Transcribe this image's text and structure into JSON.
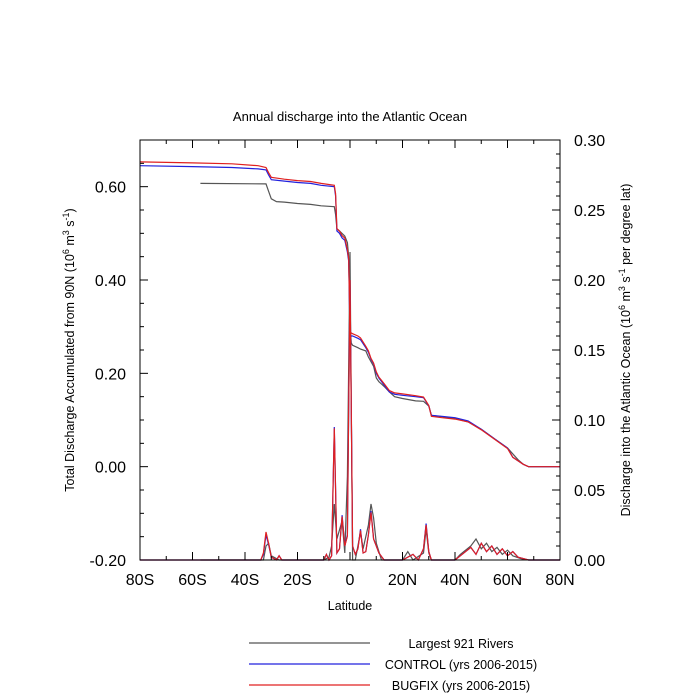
{
  "chart_data": {
    "type": "line",
    "title": "Annual discharge into the Atlantic Ocean",
    "xlabel": "Latitude",
    "ylabel_left": {
      "text": "Total Discharge Accumulated from 90N (10",
      "sup1": "6",
      "mid": " m",
      "sup2": "3",
      "mid2": " s",
      "sup3": "-1",
      "end": ")"
    },
    "ylabel_right": {
      "text": "Discharge into the Atlantic Ocean (10",
      "sup1": "6",
      "mid": " m",
      "sup2": "3",
      "mid2": " s",
      "sup3": "-1",
      "end": " per degree lat)"
    },
    "x_ticks": [
      {
        "value": -80,
        "label": "80S"
      },
      {
        "value": -60,
        "label": "60S"
      },
      {
        "value": -40,
        "label": "40S"
      },
      {
        "value": -20,
        "label": "20S"
      },
      {
        "value": 0,
        "label": "0"
      },
      {
        "value": 20,
        "label": "20N"
      },
      {
        "value": 40,
        "label": "40N"
      },
      {
        "value": 60,
        "label": "60N"
      },
      {
        "value": 80,
        "label": "80N"
      }
    ],
    "y_left_ticks": [
      {
        "value": -0.2,
        "label": "-0.20"
      },
      {
        "value": 0.0,
        "label": "0.00"
      },
      {
        "value": 0.2,
        "label": "0.20"
      },
      {
        "value": 0.4,
        "label": "0.40"
      },
      {
        "value": 0.6,
        "label": "0.60"
      }
    ],
    "y_right_ticks": [
      {
        "value": 0.0,
        "label": "0.00"
      },
      {
        "value": 0.05,
        "label": "0.05"
      },
      {
        "value": 0.1,
        "label": "0.10"
      },
      {
        "value": 0.15,
        "label": "0.15"
      },
      {
        "value": 0.2,
        "label": "0.20"
      },
      {
        "value": 0.25,
        "label": "0.25"
      },
      {
        "value": 0.3,
        "label": "0.30"
      }
    ],
    "xlim": [
      -80,
      80
    ],
    "ylim_left": [
      -0.2,
      0.7
    ],
    "ylim_right": [
      0.0,
      0.3
    ],
    "legend_position": "bottom",
    "series": [
      {
        "name": "Largest 921 Rivers",
        "color": "#555555",
        "accumulated": [
          [
            -57,
            0.607
          ],
          [
            -32,
            0.606
          ],
          [
            -31,
            0.59
          ],
          [
            -30,
            0.574
          ],
          [
            -28,
            0.568
          ],
          [
            -25,
            0.567
          ],
          [
            -20,
            0.564
          ],
          [
            -15,
            0.562
          ],
          [
            -11,
            0.559
          ],
          [
            -6,
            0.557
          ],
          [
            -5.5,
            0.54
          ],
          [
            -5,
            0.51
          ],
          [
            -4,
            0.505
          ],
          [
            -2,
            0.494
          ],
          [
            -1,
            0.48
          ],
          [
            -0.5,
            0.45
          ],
          [
            0,
            0.3
          ],
          [
            0.5,
            0.265
          ],
          [
            1,
            0.26
          ],
          [
            3,
            0.255
          ],
          [
            4,
            0.252
          ],
          [
            6,
            0.248
          ],
          [
            7,
            0.235
          ],
          [
            9,
            0.215
          ],
          [
            10,
            0.19
          ],
          [
            11,
            0.182
          ],
          [
            13,
            0.172
          ],
          [
            15,
            0.16
          ],
          [
            17,
            0.15
          ],
          [
            20,
            0.146
          ],
          [
            25,
            0.141
          ],
          [
            28,
            0.14
          ],
          [
            30,
            0.13
          ],
          [
            31,
            0.11
          ],
          [
            35,
            0.107
          ],
          [
            40,
            0.103
          ],
          [
            45,
            0.096
          ],
          [
            50,
            0.08
          ],
          [
            55,
            0.06
          ],
          [
            60,
            0.04
          ],
          [
            64,
            0.015
          ],
          [
            66,
            0.005
          ],
          [
            68,
            0.0
          ],
          [
            80,
            0.0
          ]
        ],
        "per_degree": [
          [
            -57,
            0.0
          ],
          [
            -33,
            0.0
          ],
          [
            -32,
            0.01
          ],
          [
            -31,
            0.012
          ],
          [
            -30,
            0.003
          ],
          [
            -27,
            0.0
          ],
          [
            -10,
            0.0
          ],
          [
            -8,
            0.002
          ],
          [
            -7,
            0.01
          ],
          [
            -6,
            0.04
          ],
          [
            -5,
            0.015
          ],
          [
            -3,
            0.028
          ],
          [
            -2,
            0.005
          ],
          [
            -1,
            0.06
          ],
          [
            0,
            0.22
          ],
          [
            1,
            0.0
          ],
          [
            2,
            0.0
          ],
          [
            4,
            0.02
          ],
          [
            5,
            0.008
          ],
          [
            7,
            0.025
          ],
          [
            8,
            0.04
          ],
          [
            9,
            0.03
          ],
          [
            10,
            0.012
          ],
          [
            12,
            0.0
          ],
          [
            20,
            0.0
          ],
          [
            22,
            0.006
          ],
          [
            24,
            0.0
          ],
          [
            28,
            0.005
          ],
          [
            29,
            0.022
          ],
          [
            30,
            0.005
          ],
          [
            31,
            0.0
          ],
          [
            40,
            0.0
          ],
          [
            42,
            0.004
          ],
          [
            46,
            0.01
          ],
          [
            48,
            0.015
          ],
          [
            50,
            0.008
          ],
          [
            52,
            0.012
          ],
          [
            54,
            0.006
          ],
          [
            56,
            0.009
          ],
          [
            58,
            0.004
          ],
          [
            60,
            0.007
          ],
          [
            62,
            0.003
          ],
          [
            65,
            0.001
          ],
          [
            68,
            0.0
          ],
          [
            80,
            0.0
          ]
        ]
      },
      {
        "name": "CONTROL (yrs 2006-2015)",
        "color": "#2222dd",
        "accumulated": [
          [
            -80,
            0.645
          ],
          [
            -60,
            0.643
          ],
          [
            -45,
            0.641
          ],
          [
            -35,
            0.638
          ],
          [
            -32,
            0.636
          ],
          [
            -31,
            0.625
          ],
          [
            -30,
            0.615
          ],
          [
            -25,
            0.612
          ],
          [
            -20,
            0.609
          ],
          [
            -15,
            0.607
          ],
          [
            -11,
            0.603
          ],
          [
            -6,
            0.6
          ],
          [
            -5.5,
            0.58
          ],
          [
            -5,
            0.505
          ],
          [
            -4,
            0.5
          ],
          [
            -3,
            0.49
          ],
          [
            -2,
            0.485
          ],
          [
            -1,
            0.46
          ],
          [
            -0.5,
            0.44
          ],
          [
            0,
            0.28
          ],
          [
            1,
            0.28
          ],
          [
            3,
            0.275
          ],
          [
            4,
            0.272
          ],
          [
            6,
            0.255
          ],
          [
            7,
            0.245
          ],
          [
            8,
            0.23
          ],
          [
            9,
            0.22
          ],
          [
            10,
            0.2
          ],
          [
            11,
            0.19
          ],
          [
            13,
            0.175
          ],
          [
            15,
            0.16
          ],
          [
            17,
            0.155
          ],
          [
            20,
            0.153
          ],
          [
            25,
            0.15
          ],
          [
            28,
            0.148
          ],
          [
            30,
            0.13
          ],
          [
            31,
            0.11
          ],
          [
            35,
            0.108
          ],
          [
            40,
            0.105
          ],
          [
            45,
            0.098
          ],
          [
            50,
            0.08
          ],
          [
            55,
            0.06
          ],
          [
            60,
            0.04
          ],
          [
            62,
            0.02
          ],
          [
            66,
            0.005
          ],
          [
            68,
            0.0
          ],
          [
            80,
            0.0
          ]
        ],
        "per_degree": [
          [
            -80,
            0.0
          ],
          [
            -34,
            0.0
          ],
          [
            -33,
            0.004
          ],
          [
            -32,
            0.018
          ],
          [
            -31,
            0.011
          ],
          [
            -30,
            0.002
          ],
          [
            -28,
            0.0
          ],
          [
            -27,
            0.003
          ],
          [
            -26,
            0.0
          ],
          [
            -10,
            0.0
          ],
          [
            -9,
            0.004
          ],
          [
            -8,
            0.0
          ],
          [
            -7,
            0.003
          ],
          [
            -6,
            0.095
          ],
          [
            -5,
            0.005
          ],
          [
            -4,
            0.008
          ],
          [
            -3,
            0.032
          ],
          [
            -2,
            0.01
          ],
          [
            -1,
            0.018
          ],
          [
            0,
            0.2
          ],
          [
            1,
            0.01
          ],
          [
            2,
            0.004
          ],
          [
            3,
            0.008
          ],
          [
            4,
            0.022
          ],
          [
            5,
            0.005
          ],
          [
            6,
            0.006
          ],
          [
            7,
            0.018
          ],
          [
            8,
            0.035
          ],
          [
            9,
            0.015
          ],
          [
            10,
            0.01
          ],
          [
            11,
            0.005
          ],
          [
            13,
            0.0
          ],
          [
            20,
            0.0
          ],
          [
            24,
            0.004
          ],
          [
            26,
            0.0
          ],
          [
            28,
            0.008
          ],
          [
            29,
            0.026
          ],
          [
            30,
            0.006
          ],
          [
            31,
            0.0
          ],
          [
            40,
            0.0
          ],
          [
            42,
            0.003
          ],
          [
            46,
            0.009
          ],
          [
            48,
            0.004
          ],
          [
            50,
            0.012
          ],
          [
            52,
            0.006
          ],
          [
            54,
            0.01
          ],
          [
            56,
            0.004
          ],
          [
            58,
            0.008
          ],
          [
            60,
            0.003
          ],
          [
            62,
            0.006
          ],
          [
            64,
            0.002
          ],
          [
            66,
            0.001
          ],
          [
            68,
            0.0
          ],
          [
            80,
            0.0
          ]
        ]
      },
      {
        "name": "BUGFIX (yrs 2006-2015)",
        "color": "#e02020",
        "accumulated": [
          [
            -80,
            0.653
          ],
          [
            -60,
            0.651
          ],
          [
            -45,
            0.649
          ],
          [
            -35,
            0.645
          ],
          [
            -32,
            0.641
          ],
          [
            -31,
            0.63
          ],
          [
            -30,
            0.62
          ],
          [
            -25,
            0.616
          ],
          [
            -20,
            0.613
          ],
          [
            -15,
            0.611
          ],
          [
            -11,
            0.607
          ],
          [
            -6,
            0.603
          ],
          [
            -5.5,
            0.585
          ],
          [
            -5,
            0.51
          ],
          [
            -4,
            0.505
          ],
          [
            -3,
            0.495
          ],
          [
            -2,
            0.49
          ],
          [
            -1,
            0.465
          ],
          [
            -0.5,
            0.445
          ],
          [
            0,
            0.288
          ],
          [
            1,
            0.285
          ],
          [
            3,
            0.28
          ],
          [
            4,
            0.276
          ],
          [
            6,
            0.258
          ],
          [
            7,
            0.248
          ],
          [
            8,
            0.232
          ],
          [
            9,
            0.222
          ],
          [
            10,
            0.203
          ],
          [
            11,
            0.192
          ],
          [
            13,
            0.178
          ],
          [
            15,
            0.163
          ],
          [
            17,
            0.158
          ],
          [
            20,
            0.156
          ],
          [
            25,
            0.152
          ],
          [
            28,
            0.149
          ],
          [
            30,
            0.131
          ],
          [
            31,
            0.108
          ],
          [
            35,
            0.105
          ],
          [
            40,
            0.102
          ],
          [
            45,
            0.096
          ],
          [
            50,
            0.079
          ],
          [
            55,
            0.059
          ],
          [
            60,
            0.039
          ],
          [
            62,
            0.02
          ],
          [
            66,
            0.005
          ],
          [
            68,
            0.0
          ],
          [
            80,
            0.0
          ]
        ],
        "per_degree": [
          [
            -80,
            0.0
          ],
          [
            -34,
            0.0
          ],
          [
            -33,
            0.005
          ],
          [
            -32,
            0.02
          ],
          [
            -31,
            0.012
          ],
          [
            -30,
            0.002
          ],
          [
            -28,
            0.0
          ],
          [
            -27,
            0.003
          ],
          [
            -26,
            0.0
          ],
          [
            -10,
            0.0
          ],
          [
            -9,
            0.004
          ],
          [
            -8,
            0.0
          ],
          [
            -7,
            0.003
          ],
          [
            -6,
            0.094
          ],
          [
            -5,
            0.005
          ],
          [
            -4,
            0.008
          ],
          [
            -3,
            0.031
          ],
          [
            -2,
            0.01
          ],
          [
            -1,
            0.017
          ],
          [
            0,
            0.2
          ],
          [
            1,
            0.01
          ],
          [
            2,
            0.004
          ],
          [
            3,
            0.008
          ],
          [
            4,
            0.021
          ],
          [
            5,
            0.005
          ],
          [
            6,
            0.006
          ],
          [
            7,
            0.018
          ],
          [
            8,
            0.034
          ],
          [
            9,
            0.015
          ],
          [
            10,
            0.01
          ],
          [
            11,
            0.005
          ],
          [
            13,
            0.0
          ],
          [
            20,
            0.0
          ],
          [
            24,
            0.004
          ],
          [
            26,
            0.0
          ],
          [
            28,
            0.008
          ],
          [
            29,
            0.025
          ],
          [
            30,
            0.006
          ],
          [
            31,
            0.0
          ],
          [
            40,
            0.0
          ],
          [
            42,
            0.003
          ],
          [
            46,
            0.009
          ],
          [
            48,
            0.004
          ],
          [
            50,
            0.012
          ],
          [
            52,
            0.006
          ],
          [
            54,
            0.01
          ],
          [
            56,
            0.004
          ],
          [
            58,
            0.008
          ],
          [
            60,
            0.003
          ],
          [
            62,
            0.006
          ],
          [
            64,
            0.002
          ],
          [
            66,
            0.001
          ],
          [
            68,
            0.0
          ],
          [
            80,
            0.0
          ]
        ]
      }
    ]
  }
}
